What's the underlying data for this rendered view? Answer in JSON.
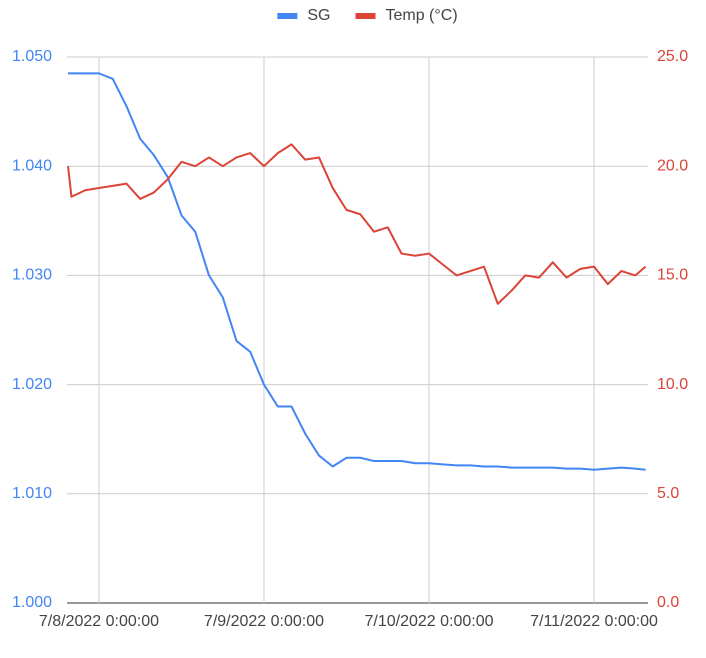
{
  "chart_data": {
    "type": "line",
    "x": [
      "7/7/2022 19:30:00",
      "7/7/2022 20:00:00",
      "7/7/2022 22:00:00",
      "7/8/2022 0:00:00",
      "7/8/2022 2:00:00",
      "7/8/2022 4:00:00",
      "7/8/2022 6:00:00",
      "7/8/2022 8:00:00",
      "7/8/2022 10:00:00",
      "7/8/2022 12:00:00",
      "7/8/2022 14:00:00",
      "7/8/2022 16:00:00",
      "7/8/2022 18:00:00",
      "7/8/2022 20:00:00",
      "7/8/2022 22:00:00",
      "7/9/2022 0:00:00",
      "7/9/2022 2:00:00",
      "7/9/2022 4:00:00",
      "7/9/2022 6:00:00",
      "7/9/2022 8:00:00",
      "7/9/2022 10:00:00",
      "7/9/2022 12:00:00",
      "7/9/2022 14:00:00",
      "7/9/2022 16:00:00",
      "7/9/2022 18:00:00",
      "7/9/2022 20:00:00",
      "7/9/2022 22:00:00",
      "7/10/2022 0:00:00",
      "7/10/2022 2:00:00",
      "7/10/2022 4:00:00",
      "7/10/2022 6:00:00",
      "7/10/2022 8:00:00",
      "7/10/2022 10:00:00",
      "7/10/2022 12:00:00",
      "7/10/2022 14:00:00",
      "7/10/2022 16:00:00",
      "7/10/2022 18:00:00",
      "7/10/2022 20:00:00",
      "7/10/2022 22:00:00",
      "7/11/2022 0:00:00",
      "7/11/2022 2:00:00",
      "7/11/2022 4:00:00",
      "7/11/2022 6:00:00",
      "7/11/2022 7:30:00"
    ],
    "series": [
      {
        "name": "SG",
        "color": "#4285f4",
        "axis": "y",
        "values": [
          1.0485,
          1.0485,
          1.0485,
          1.0485,
          1.048,
          1.0455,
          1.0425,
          1.041,
          1.039,
          1.0355,
          1.034,
          1.03,
          1.028,
          1.024,
          1.023,
          1.02,
          1.018,
          1.018,
          1.0155,
          1.0135,
          1.0125,
          1.0133,
          1.0133,
          1.013,
          1.013,
          1.013,
          1.0128,
          1.0128,
          1.0127,
          1.0126,
          1.0126,
          1.0125,
          1.0125,
          1.0124,
          1.0124,
          1.0124,
          1.0124,
          1.0123,
          1.0123,
          1.0122,
          1.0123,
          1.0124,
          1.0123,
          1.0122
        ]
      },
      {
        "name": "Temp (°C)",
        "color": "#db4437",
        "axis": "y2",
        "values": [
          20.0,
          18.6,
          18.9,
          19.0,
          19.1,
          19.2,
          18.5,
          18.8,
          19.4,
          20.2,
          20.0,
          20.4,
          20.0,
          20.4,
          20.6,
          20.0,
          20.6,
          21.0,
          20.3,
          20.4,
          19.0,
          18.0,
          17.8,
          17.0,
          17.2,
          16.0,
          15.9,
          16.0,
          15.5,
          15.0,
          15.2,
          15.4,
          13.7,
          14.3,
          15.0,
          14.9,
          15.6,
          14.9,
          15.3,
          15.4,
          14.6,
          15.2,
          15.0,
          15.4
        ]
      }
    ],
    "xlim": [
      "7/7/2022 19:21:00",
      "7/11/2022 7:51:00"
    ],
    "xticks": [
      "7/8/2022 0:00:00",
      "7/9/2022 0:00:00",
      "7/10/2022 0:00:00",
      "7/11/2022 0:00:00"
    ],
    "ylim": [
      1.0,
      1.05
    ],
    "yticks": [
      {
        "value": 1.0,
        "label": "1.000"
      },
      {
        "value": 1.01,
        "label": "1.010"
      },
      {
        "value": 1.02,
        "label": "1.020"
      },
      {
        "value": 1.03,
        "label": "1.030"
      },
      {
        "value": 1.04,
        "label": "1.040"
      },
      {
        "value": 1.05,
        "label": "1.050"
      }
    ],
    "y2lim": [
      0,
      25
    ],
    "y2ticks": [
      {
        "value": 0,
        "label": "0.0"
      },
      {
        "value": 5,
        "label": "5.0"
      },
      {
        "value": 10,
        "label": "10.0"
      },
      {
        "value": 15,
        "label": "15.0"
      },
      {
        "value": 20,
        "label": "20.0"
      },
      {
        "value": 25,
        "label": "25.0"
      }
    ],
    "grid": true,
    "legend": "top"
  }
}
